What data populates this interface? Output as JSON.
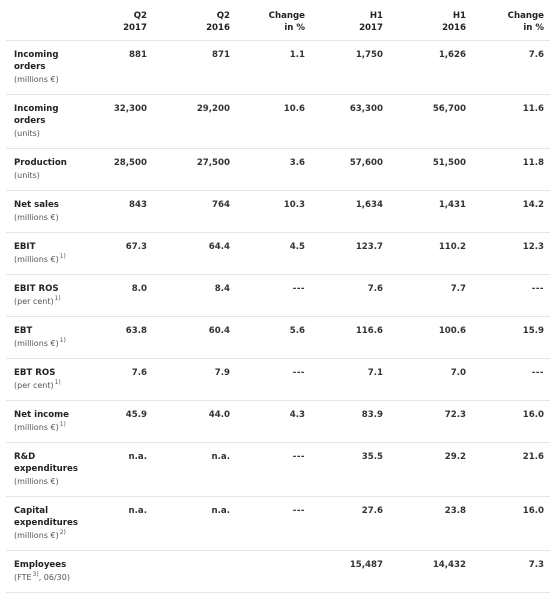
{
  "table": {
    "headers": [
      {
        "line1": "",
        "line2": ""
      },
      {
        "line1": "Q2",
        "line2": "2017"
      },
      {
        "line1": "Q2",
        "line2": "2016"
      },
      {
        "line1": "Change",
        "line2": "in %"
      },
      {
        "line1": "H1",
        "line2": "2017"
      },
      {
        "line1": "H1",
        "line2": "2016"
      },
      {
        "line1": "Change",
        "line2": "in %"
      }
    ],
    "rows": [
      {
        "label": "Incoming\norders",
        "unit": "(millions €)",
        "sup": "",
        "values": [
          "881",
          "871",
          "1.1",
          "1,750",
          "1,626",
          "7.6"
        ]
      },
      {
        "label": "Incoming\norders",
        "unit": "(units)",
        "sup": "",
        "values": [
          "32,300",
          "29,200",
          "10.6",
          "63,300",
          "56,700",
          "11.6"
        ]
      },
      {
        "label": "Production",
        "unit": "(units)",
        "sup": "",
        "values": [
          "28,500",
          "27,500",
          "3.6",
          "57,600",
          "51,500",
          "11.8"
        ]
      },
      {
        "label": "Net sales",
        "unit": "(millions €)",
        "sup": "",
        "values": [
          "843",
          "764",
          "10.3",
          "1,634",
          "1,431",
          "14.2"
        ]
      },
      {
        "label": "EBIT",
        "unit": "(millions €)",
        "sup": "1)",
        "values": [
          "67.3",
          "64.4",
          "4.5",
          "123.7",
          "110.2",
          "12.3"
        ]
      },
      {
        "label": "EBIT ROS",
        "unit": "(per cent)",
        "sup": "1)",
        "values": [
          "8.0",
          "8.4",
          "---",
          "7.6",
          "7.7",
          "---"
        ]
      },
      {
        "label": "EBT",
        "unit": "(millions €)",
        "sup": "1)",
        "values": [
          "63.8",
          "60.4",
          "5.6",
          "116.6",
          "100.6",
          "15.9"
        ]
      },
      {
        "label": "EBT ROS",
        "unit": "(per cent)",
        "sup": "1)",
        "values": [
          "7.6",
          "7.9",
          "---",
          "7.1",
          "7.0",
          "---"
        ]
      },
      {
        "label": "Net income",
        "unit": "(millions €)",
        "sup": "1)",
        "values": [
          "45.9",
          "44.0",
          "4.3",
          "83.9",
          "72.3",
          "16.0"
        ]
      },
      {
        "label": "R&D\nexpenditures",
        "unit": "(millions €)",
        "sup": "",
        "values": [
          "n.a.",
          "n.a.",
          "---",
          "35.5",
          "29.2",
          "21.6"
        ]
      },
      {
        "label": "Capital\nexpenditures",
        "unit": "(millions €)",
        "sup": "2)",
        "values": [
          "n.a.",
          "n.a.",
          "---",
          "27.6",
          "23.8",
          "16.0"
        ]
      },
      {
        "label": "Employees",
        "unit": "(FTE",
        "unit_sup": "3)",
        "unit_tail": ", 06/30)",
        "sup": "",
        "values": [
          "",
          "",
          "",
          "15,487",
          "14,432",
          "7.3"
        ]
      }
    ]
  }
}
